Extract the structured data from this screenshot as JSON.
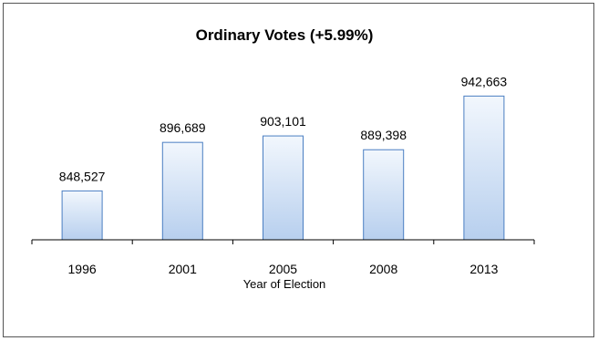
{
  "chart_data": {
    "type": "bar",
    "title": "Ordinary Votes (+5.99%)",
    "xlabel": "Year of Election",
    "ylabel": "",
    "categories": [
      "1996",
      "2001",
      "2005",
      "2008",
      "2013"
    ],
    "values": [
      848527,
      896689,
      903101,
      889398,
      942663
    ],
    "value_labels": [
      "848,527",
      "896,689",
      "903,101",
      "889,398",
      "942,663"
    ],
    "ylim": [
      800000,
      960000
    ],
    "grid": false,
    "legend": "none",
    "colors": {
      "bar_fill_top": "#f2f7fd",
      "bar_fill_bottom": "#b7cfee",
      "bar_stroke": "#4a7ec2",
      "axis": "#000000"
    }
  }
}
